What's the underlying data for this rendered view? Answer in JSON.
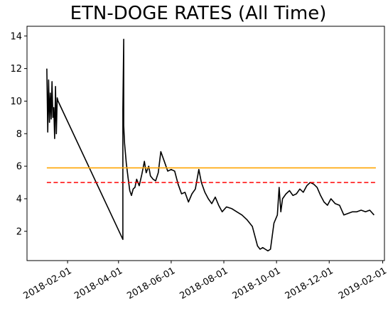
{
  "chart_data": {
    "type": "line",
    "title": "ETN-DOGE RATES (All Time)",
    "xlabel": "",
    "ylabel": "",
    "xlim": [
      "2017-12-16",
      "2019-02-03"
    ],
    "ylim": [
      0.2,
      14.6
    ],
    "grid": false,
    "legend": "none",
    "x_ticks": [
      "2018-02-01",
      "2018-04-01",
      "2018-06-01",
      "2018-08-01",
      "2018-10-01",
      "2018-12-01",
      "2019-02-01"
    ],
    "y_ticks": [
      2,
      4,
      6,
      8,
      10,
      12,
      14
    ],
    "series": [
      {
        "color": "#000000",
        "style": "solid",
        "x": [
          "2018-01-08",
          "2018-01-09",
          "2018-01-10",
          "2018-01-11",
          "2018-01-12",
          "2018-01-13",
          "2018-01-14",
          "2018-01-15",
          "2018-01-16",
          "2018-01-17",
          "2018-01-18",
          "2018-01-19",
          "2018-01-20",
          "2018-01-20",
          "2018-01-21",
          "2018-04-06",
          "2018-04-06",
          "2018-04-07",
          "2018-04-07",
          "2018-04-08",
          "2018-04-10",
          "2018-04-12",
          "2018-04-14",
          "2018-04-16",
          "2018-04-18",
          "2018-04-20",
          "2018-04-22",
          "2018-04-25",
          "2018-04-28",
          "2018-05-01",
          "2018-05-03",
          "2018-05-06",
          "2018-05-08",
          "2018-05-11",
          "2018-05-14",
          "2018-05-17",
          "2018-05-20",
          "2018-05-24",
          "2018-05-28",
          "2018-06-01",
          "2018-06-05",
          "2018-06-09",
          "2018-06-13",
          "2018-06-17",
          "2018-06-21",
          "2018-06-25",
          "2018-06-29",
          "2018-07-03",
          "2018-07-06",
          "2018-07-10",
          "2018-07-14",
          "2018-07-18",
          "2018-07-22",
          "2018-07-26",
          "2018-07-30",
          "2018-08-04",
          "2018-08-10",
          "2018-08-16",
          "2018-08-22",
          "2018-08-28",
          "2018-09-03",
          "2018-09-09",
          "2018-09-12",
          "2018-09-15",
          "2018-09-18",
          "2018-09-21",
          "2018-09-24",
          "2018-09-28",
          "2018-10-02",
          "2018-10-04",
          "2018-10-06",
          "2018-10-08",
          "2018-10-12",
          "2018-10-16",
          "2018-10-20",
          "2018-10-24",
          "2018-10-28",
          "2018-11-01",
          "2018-11-05",
          "2018-11-09",
          "2018-11-13",
          "2018-11-17",
          "2018-11-21",
          "2018-11-25",
          "2018-11-29",
          "2018-12-03",
          "2018-12-08",
          "2018-12-13",
          "2018-12-18",
          "2018-12-23",
          "2018-12-28",
          "2019-01-02",
          "2019-01-07",
          "2019-01-12",
          "2019-01-17",
          "2019-01-22"
        ],
        "y": [
          12.0,
          8.1,
          11.3,
          8.7,
          10.5,
          8.9,
          11.2,
          9.0,
          9.6,
          7.7,
          10.9,
          8.0,
          10.2,
          10.2,
          10.0,
          1.5,
          9.5,
          13.8,
          8.5,
          7.4,
          6.2,
          5.3,
          4.5,
          4.2,
          4.6,
          4.7,
          5.2,
          4.8,
          5.5,
          6.3,
          5.6,
          6.0,
          5.4,
          5.2,
          5.1,
          5.6,
          6.9,
          6.3,
          5.7,
          5.8,
          5.7,
          4.9,
          4.3,
          4.4,
          3.8,
          4.3,
          4.6,
          5.8,
          5.0,
          4.4,
          4.0,
          3.7,
          4.1,
          3.6,
          3.2,
          3.5,
          3.4,
          3.2,
          3.0,
          2.7,
          2.3,
          1.1,
          0.9,
          1.0,
          0.9,
          0.8,
          0.9,
          2.5,
          3.0,
          4.7,
          3.2,
          4.0,
          4.3,
          4.5,
          4.2,
          4.3,
          4.6,
          4.4,
          4.8,
          5.0,
          4.9,
          4.7,
          4.2,
          3.8,
          3.6,
          4.0,
          3.7,
          3.6,
          3.0,
          3.1,
          3.2,
          3.2,
          3.3,
          3.2,
          3.3,
          3.0
        ]
      },
      {
        "color": "#ffa500",
        "style": "solid",
        "x": [
          "2018-01-08",
          "2019-01-24"
        ],
        "y": [
          5.9,
          5.9
        ]
      },
      {
        "color": "#ff0000",
        "style": "dashed",
        "x": [
          "2018-01-08",
          "2019-01-24"
        ],
        "y": [
          5.0,
          5.0
        ]
      }
    ]
  }
}
